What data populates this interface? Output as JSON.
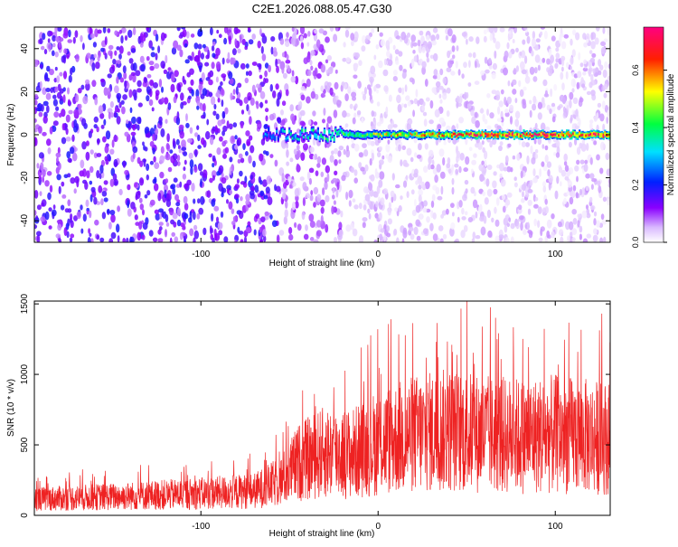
{
  "page_title": "C2E1.2026.088.05.47.G30",
  "chart_data": [
    {
      "type": "heatmap",
      "title": "C2E1.2026.088.05.47.G30",
      "xlabel": "Height of straight line (km)",
      "ylabel": "Frequency (Hz)",
      "xlim": [
        -194,
        131
      ],
      "ylim": [
        -50,
        50
      ],
      "x_ticks": [
        -100,
        0,
        100
      ],
      "y_ticks": [
        -40,
        -20,
        0,
        20,
        40
      ],
      "colorbar": {
        "label": "Normalized spectral amplitude",
        "range": [
          0,
          0.75
        ],
        "ticks": [
          0.0,
          0.2,
          0.4,
          0.6
        ],
        "colors": [
          "#ffffff",
          "#8a00ff",
          "#0020ff",
          "#00ffff",
          "#00ff40",
          "#ffff00",
          "#ff0000",
          "#ff0080"
        ]
      },
      "signal_band": {
        "frequency": 0,
        "onset_height": -65,
        "peak_amplitude": 0.72
      },
      "noise": {
        "low_height_range": [
          -194,
          -55
        ],
        "low_height_amplitude": 0.15,
        "high_height_amplitude": 0.05
      }
    },
    {
      "type": "line",
      "xlabel": "Height of straight line (km)",
      "ylabel": "SNR (10 * v/v)",
      "xlim": [
        -194,
        131
      ],
      "ylim": [
        0,
        1520
      ],
      "x_ticks": [
        -100,
        0,
        100
      ],
      "y_ticks": [
        0,
        500,
        1000,
        1500
      ],
      "color": "#ee2222",
      "envelope": [
        {
          "x": -194,
          "y": 200
        },
        {
          "x": -150,
          "y": 230
        },
        {
          "x": -100,
          "y": 270
        },
        {
          "x": -70,
          "y": 300
        },
        {
          "x": -55,
          "y": 420
        },
        {
          "x": -45,
          "y": 650
        },
        {
          "x": -30,
          "y": 780
        },
        {
          "x": -15,
          "y": 760
        },
        {
          "x": 0,
          "y": 900
        },
        {
          "x": 20,
          "y": 1000
        },
        {
          "x": 40,
          "y": 1050
        },
        {
          "x": 60,
          "y": 1000
        },
        {
          "x": 80,
          "y": 980
        },
        {
          "x": 100,
          "y": 1000
        },
        {
          "x": 131,
          "y": 950
        }
      ]
    }
  ]
}
